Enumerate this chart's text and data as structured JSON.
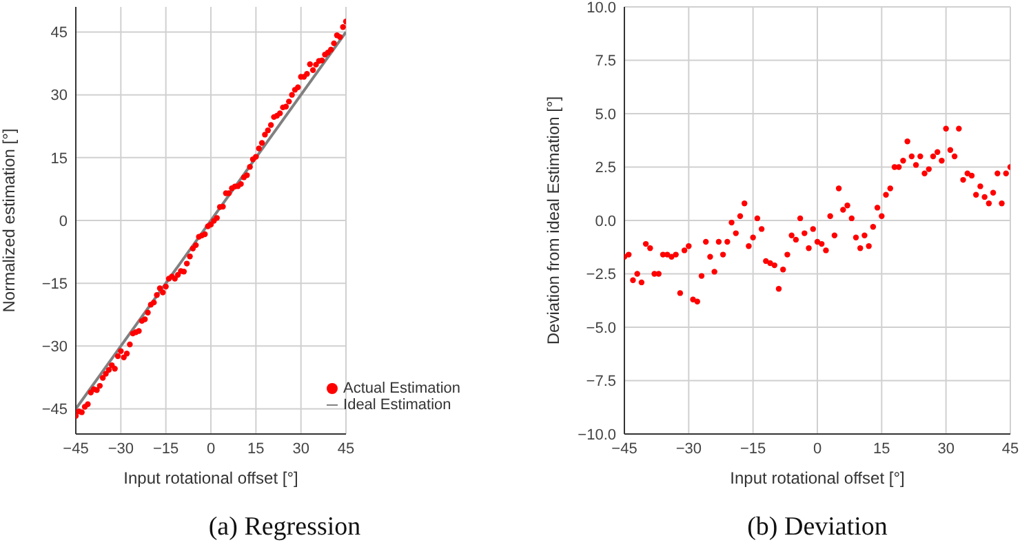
{
  "chart_data": [
    {
      "type": "scatter",
      "xlabel": "Input rotational offset [°]",
      "ylabel": "Normalized estimation [°]",
      "annotations": [
        "(a) Regression"
      ],
      "x": [
        -45,
        -44,
        -43,
        -42,
        -41,
        -40,
        -39,
        -38,
        -37,
        -36,
        -35,
        -34,
        -33,
        -32,
        -31,
        -30,
        -29,
        -28,
        -27,
        -26,
        -25,
        -24,
        -23,
        -22,
        -21,
        -20,
        -19,
        -18,
        -17,
        -16,
        -15,
        -14,
        -13,
        -12,
        -11,
        -10,
        -9,
        -8,
        -7,
        -6,
        -5,
        -4,
        -3,
        -2,
        -1,
        0,
        1,
        2,
        3,
        4,
        5,
        6,
        7,
        8,
        9,
        10,
        11,
        12,
        13,
        14,
        15,
        16,
        17,
        18,
        19,
        20,
        21,
        22,
        23,
        24,
        25,
        26,
        27,
        28,
        29,
        30,
        31,
        32,
        33,
        34,
        35,
        36,
        37,
        38,
        39,
        40,
        41,
        42,
        43,
        44,
        45
      ],
      "series": [
        {
          "name": "Actual Estimation",
          "marker": "circle",
          "color": "#ff0000",
          "values": [
            -46.7,
            -45.6,
            -45.8,
            -44.5,
            -43.9,
            -41.1,
            -40.3,
            -40.5,
            -39.5,
            -37.6,
            -36.6,
            -35.7,
            -34.6,
            -35.4,
            -32.4,
            -31.2,
            -32.7,
            -31.8,
            -29.6,
            -27.0,
            -26.7,
            -26.4,
            -24.0,
            -23.6,
            -22.0,
            -20.1,
            -19.6,
            -17.8,
            -16.2,
            -17.2,
            -15.8,
            -13.9,
            -13.4,
            -13.9,
            -13.0,
            -12.1,
            -12.2,
            -10.3,
            -8.6,
            -6.7,
            -5.9,
            -3.9,
            -3.6,
            -3.3,
            -1.4,
            -1.0,
            -0.1,
            0.6,
            3.2,
            3.3,
            6.5,
            6.5,
            7.7,
            8.1,
            8.2,
            8.7,
            10.3,
            10.8,
            12.8,
            14.6,
            15.2,
            17.2,
            18.5,
            20.5,
            21.5,
            22.8,
            24.7,
            25.0,
            25.6,
            27.0,
            27.2,
            28.4,
            30.0,
            31.2,
            31.8,
            34.3,
            34.3,
            35.0,
            37.3,
            35.9,
            37.2,
            38.1,
            38.2,
            39.6,
            40.1,
            40.8,
            42.3,
            44.2,
            43.8,
            46.2,
            47.5
          ]
        },
        {
          "name": "Ideal Estimation",
          "type": "line",
          "color": "#808080",
          "x": [
            -45,
            45
          ],
          "values": [
            -45,
            45
          ]
        }
      ],
      "xlim": [
        -45,
        45
      ],
      "xticks": [
        {
          "value": -45,
          "label": "−45"
        },
        {
          "value": -30,
          "label": "−30"
        },
        {
          "value": -15,
          "label": "−15"
        },
        0,
        15,
        30,
        45
      ],
      "ylim": [
        -51,
        51
      ],
      "yticks": [
        {
          "value": -45,
          "label": "−45"
        },
        {
          "value": -30,
          "label": "−30"
        },
        {
          "value": -15,
          "label": "−15"
        },
        0,
        15,
        30,
        45
      ],
      "grid": true,
      "legend": "bottom right"
    },
    {
      "type": "scatter",
      "xlabel": "Input rotational offset [°]",
      "ylabel": "Deviation from ideal Estimation [°]",
      "annotations": [
        "(b) Deviation"
      ],
      "x": [
        -45,
        -44,
        -43,
        -42,
        -41,
        -40,
        -39,
        -38,
        -37,
        -36,
        -35,
        -34,
        -33,
        -32,
        -31,
        -30,
        -29,
        -28,
        -27,
        -26,
        -25,
        -24,
        -23,
        -22,
        -21,
        -20,
        -19,
        -18,
        -17,
        -16,
        -15,
        -14,
        -13,
        -12,
        -11,
        -10,
        -9,
        -8,
        -7,
        -6,
        -5,
        -4,
        -3,
        -2,
        -1,
        0,
        1,
        2,
        3,
        4,
        5,
        6,
        7,
        8,
        9,
        10,
        11,
        12,
        13,
        14,
        15,
        16,
        17,
        18,
        19,
        20,
        21,
        22,
        23,
        24,
        25,
        26,
        27,
        28,
        29,
        30,
        31,
        32,
        33,
        34,
        35,
        36,
        37,
        38,
        39,
        40,
        41,
        42,
        43,
        44,
        45
      ],
      "series": [
        {
          "marker": "circle",
          "color": "#ff0000",
          "values": [
            -1.7,
            -1.6,
            -2.8,
            -2.5,
            -2.9,
            -1.1,
            -1.3,
            -2.5,
            -2.5,
            -1.6,
            -1.6,
            -1.7,
            -1.6,
            -3.4,
            -1.4,
            -1.2,
            -3.7,
            -3.8,
            -2.6,
            -1.0,
            -1.7,
            -2.4,
            -1.0,
            -1.6,
            -1.0,
            -0.1,
            -0.6,
            0.2,
            0.8,
            -1.2,
            -0.8,
            0.1,
            -0.4,
            -1.9,
            -2.0,
            -2.1,
            -3.2,
            -2.3,
            -1.6,
            -0.7,
            -0.9,
            0.1,
            -0.6,
            -1.3,
            -0.4,
            -1.0,
            -1.1,
            -1.4,
            0.2,
            -0.7,
            1.5,
            0.5,
            0.7,
            0.1,
            -0.8,
            -1.3,
            -0.7,
            -1.2,
            -0.3,
            0.6,
            0.2,
            1.2,
            1.5,
            2.5,
            2.5,
            2.8,
            3.7,
            3.0,
            2.6,
            3.0,
            2.2,
            2.4,
            3.0,
            3.2,
            2.8,
            4.3,
            3.3,
            3.0,
            4.3,
            1.9,
            2.2,
            2.1,
            1.2,
            1.6,
            1.1,
            0.8,
            1.3,
            2.2,
            0.8,
            2.2,
            2.5
          ]
        }
      ],
      "xlim": [
        -45,
        45
      ],
      "xticks": [
        {
          "value": -45,
          "label": "−45"
        },
        {
          "value": -30,
          "label": "−30"
        },
        {
          "value": -15,
          "label": "−15"
        },
        0,
        15,
        30,
        45
      ],
      "ylim": [
        -10,
        10
      ],
      "yticks": [
        {
          "value": -10,
          "label": "−10.0"
        },
        {
          "value": -7.5,
          "label": "−7.5"
        },
        {
          "value": -5,
          "label": "−5.0"
        },
        {
          "value": -2.5,
          "label": "−2.5"
        },
        {
          "value": 0,
          "label": "0.0"
        },
        {
          "value": 2.5,
          "label": "2.5"
        },
        {
          "value": 5,
          "label": "5.0"
        },
        {
          "value": 7.5,
          "label": "7.5"
        },
        {
          "value": 10,
          "label": "10.0"
        }
      ],
      "grid": true
    }
  ]
}
